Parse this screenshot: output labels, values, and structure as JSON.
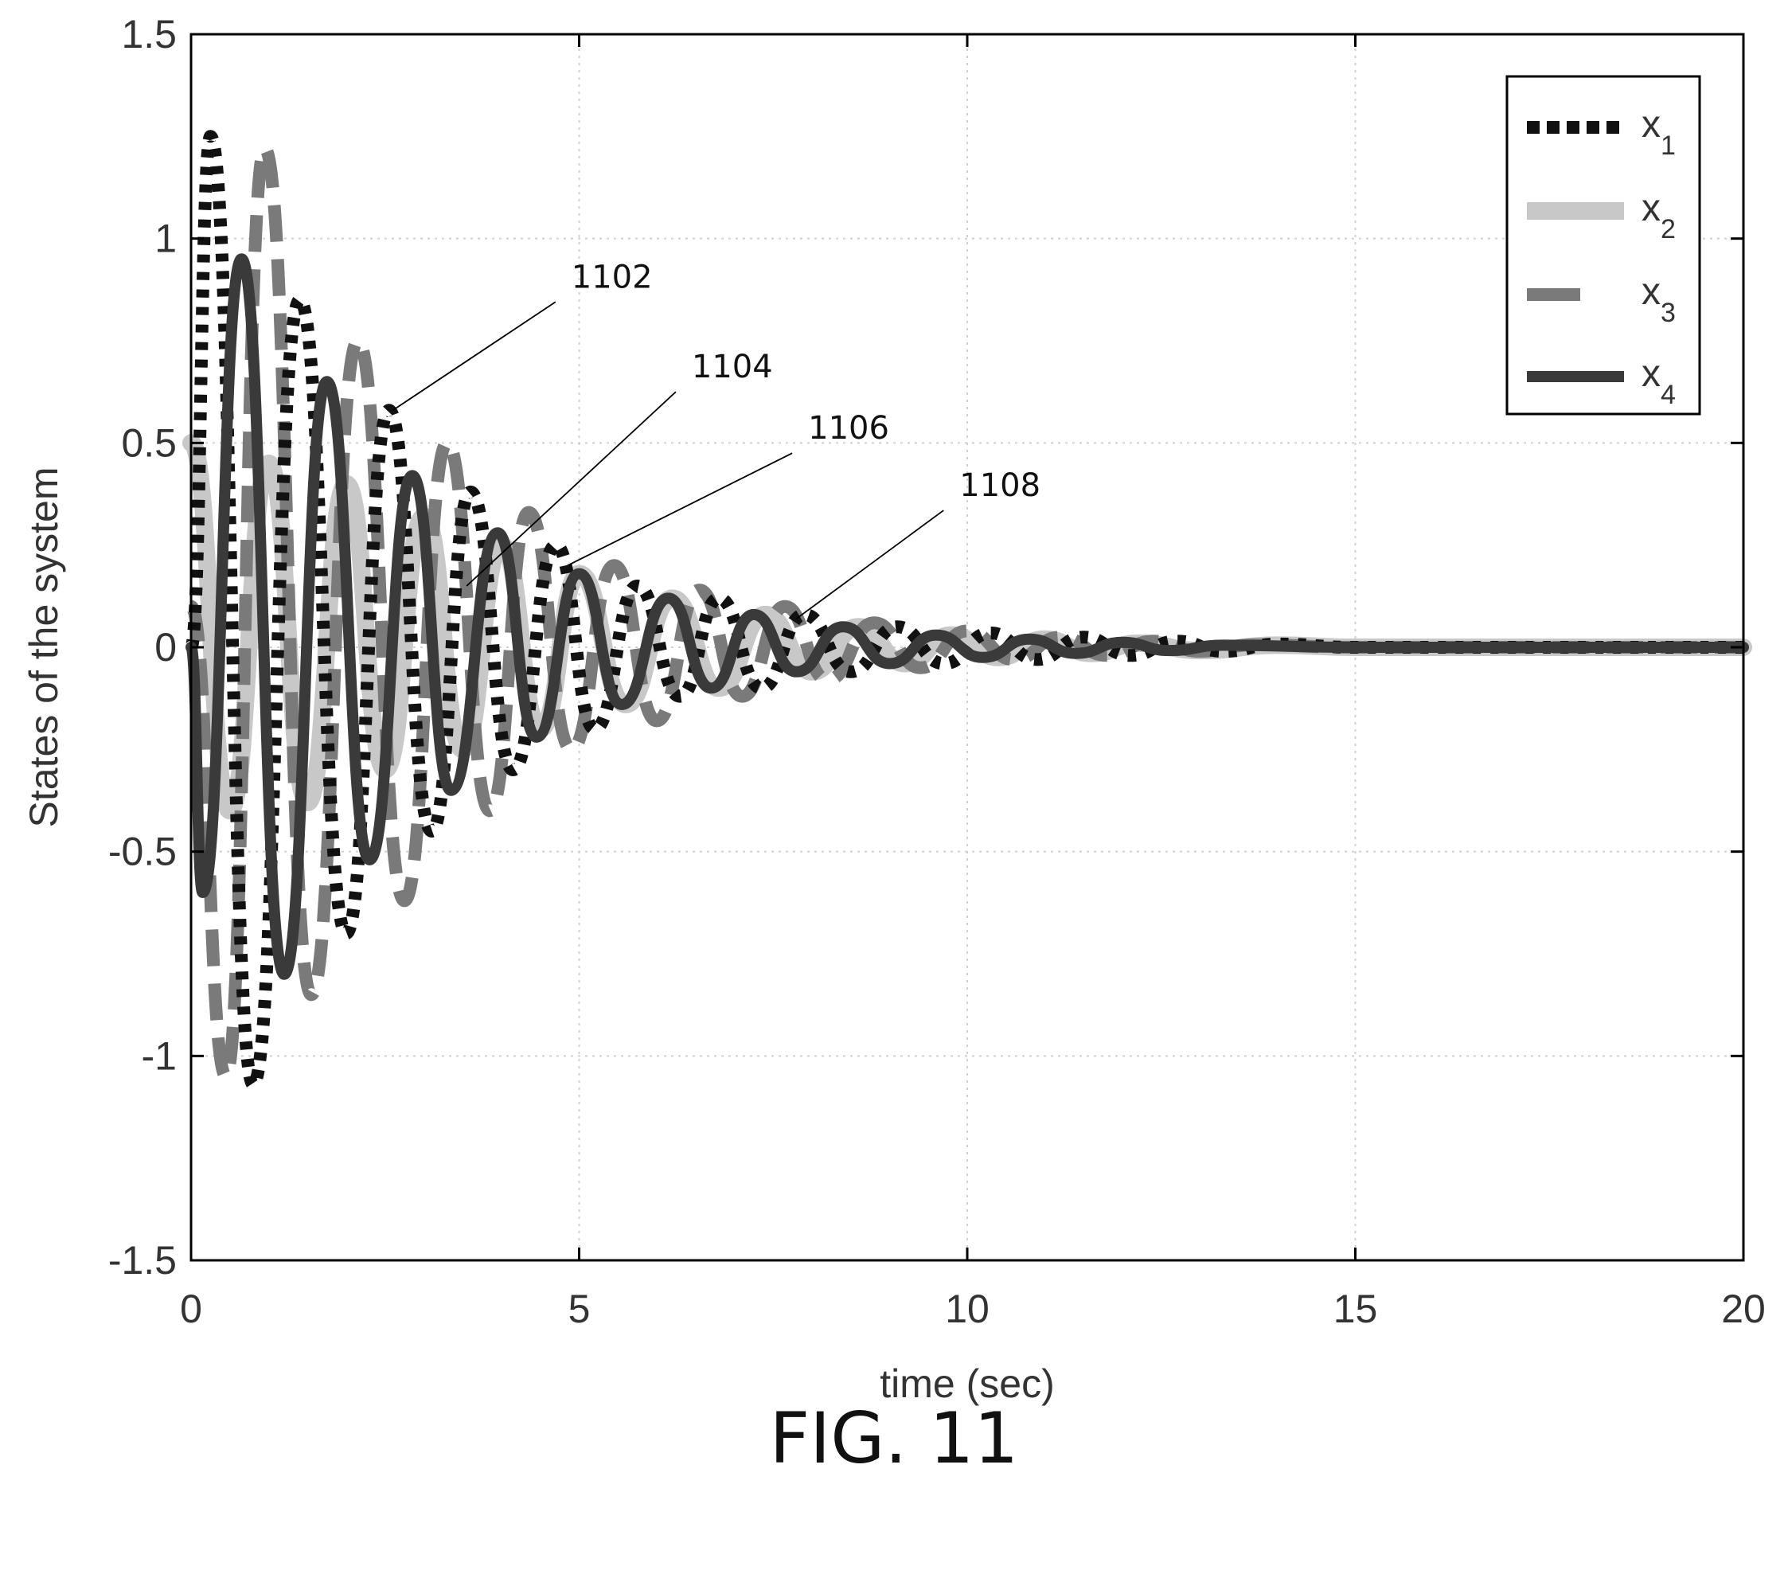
{
  "chart_data": {
    "type": "line",
    "xlabel": "time (sec)",
    "ylabel": "States of the system",
    "xlim": [
      0,
      20
    ],
    "ylim": [
      -1.5,
      1.5
    ],
    "xticks": [
      "0",
      "5",
      "10",
      "15",
      "20"
    ],
    "yticks": [
      "1.5",
      "1",
      "0.5",
      "0",
      "-0.5",
      "-1",
      "-1.5"
    ],
    "grid": true,
    "legend_position": "top-right",
    "series": [
      {
        "name": "x",
        "subscript": "1",
        "style": "dotted",
        "color": "#111111",
        "points": [
          [
            0,
            0.0
          ],
          [
            0.25,
            1.25
          ],
          [
            0.8,
            -1.07
          ],
          [
            1.4,
            0.85
          ],
          [
            2.0,
            -0.7
          ],
          [
            2.55,
            0.58
          ],
          [
            3.1,
            -0.45
          ],
          [
            3.6,
            0.38
          ],
          [
            4.15,
            -0.3
          ],
          [
            4.7,
            0.25
          ],
          [
            5.2,
            -0.2
          ],
          [
            5.75,
            0.15
          ],
          [
            6.3,
            -0.12
          ],
          [
            6.8,
            0.12
          ],
          [
            7.35,
            -0.1
          ],
          [
            7.9,
            0.08
          ],
          [
            8.5,
            -0.06
          ],
          [
            9.1,
            0.05
          ],
          [
            9.7,
            -0.04
          ],
          [
            10.3,
            0.035
          ],
          [
            10.9,
            -0.03
          ],
          [
            11.5,
            0.025
          ],
          [
            12.1,
            -0.02
          ],
          [
            12.7,
            0.015
          ],
          [
            13.3,
            -0.01
          ],
          [
            14.0,
            0.008
          ],
          [
            15.0,
            0.0
          ],
          [
            20,
            0.0
          ]
        ]
      },
      {
        "name": "x",
        "subscript": "2",
        "style": "solid",
        "color": "#c8c8c8",
        "points": [
          [
            0,
            0.5
          ],
          [
            0.5,
            -0.4
          ],
          [
            1.0,
            0.45
          ],
          [
            1.5,
            -0.38
          ],
          [
            2.0,
            0.4
          ],
          [
            2.5,
            -0.3
          ],
          [
            3.0,
            0.32
          ],
          [
            3.5,
            -0.25
          ],
          [
            4.0,
            0.25
          ],
          [
            4.5,
            -0.2
          ],
          [
            5.0,
            0.18
          ],
          [
            5.6,
            -0.14
          ],
          [
            6.2,
            0.12
          ],
          [
            6.8,
            -0.1
          ],
          [
            7.4,
            0.08
          ],
          [
            8.0,
            -0.06
          ],
          [
            8.6,
            0.05
          ],
          [
            9.2,
            -0.04
          ],
          [
            9.8,
            0.03
          ],
          [
            10.4,
            -0.025
          ],
          [
            11.0,
            0.02
          ],
          [
            11.6,
            -0.015
          ],
          [
            12.2,
            0.01
          ],
          [
            13.0,
            -0.008
          ],
          [
            14.0,
            0.005
          ],
          [
            15.0,
            0.0
          ],
          [
            20,
            0.0
          ]
        ]
      },
      {
        "name": "x",
        "subscript": "3",
        "style": "dashed",
        "color": "#7a7a7a",
        "points": [
          [
            0,
            0.1
          ],
          [
            0.45,
            -1.05
          ],
          [
            0.95,
            1.22
          ],
          [
            1.55,
            -0.85
          ],
          [
            2.15,
            0.75
          ],
          [
            2.75,
            -0.62
          ],
          [
            3.3,
            0.5
          ],
          [
            3.85,
            -0.4
          ],
          [
            4.35,
            0.33
          ],
          [
            4.9,
            -0.25
          ],
          [
            5.45,
            0.2
          ],
          [
            6.0,
            -0.18
          ],
          [
            6.55,
            0.14
          ],
          [
            7.1,
            -0.12
          ],
          [
            7.65,
            0.1
          ],
          [
            8.2,
            -0.08
          ],
          [
            8.8,
            0.06
          ],
          [
            9.4,
            -0.05
          ],
          [
            10.0,
            0.04
          ],
          [
            10.6,
            -0.03
          ],
          [
            11.2,
            0.025
          ],
          [
            11.8,
            -0.02
          ],
          [
            12.4,
            0.015
          ],
          [
            13.0,
            -0.01
          ],
          [
            13.7,
            0.006
          ],
          [
            15.0,
            0.0
          ],
          [
            20,
            0.0
          ]
        ]
      },
      {
        "name": "x",
        "subscript": "4",
        "style": "solid",
        "color": "#3a3a3a",
        "points": [
          [
            0,
            0.0
          ],
          [
            0.15,
            -0.6
          ],
          [
            0.65,
            0.95
          ],
          [
            1.2,
            -0.8
          ],
          [
            1.75,
            0.65
          ],
          [
            2.3,
            -0.52
          ],
          [
            2.85,
            0.42
          ],
          [
            3.35,
            -0.35
          ],
          [
            3.95,
            0.28
          ],
          [
            4.45,
            -0.22
          ],
          [
            5.0,
            0.18
          ],
          [
            5.55,
            -0.14
          ],
          [
            6.15,
            0.12
          ],
          [
            6.7,
            -0.1
          ],
          [
            7.25,
            0.08
          ],
          [
            7.8,
            -0.06
          ],
          [
            8.4,
            0.05
          ],
          [
            9.0,
            -0.04
          ],
          [
            9.6,
            0.03
          ],
          [
            10.2,
            -0.025
          ],
          [
            10.8,
            0.02
          ],
          [
            11.4,
            -0.015
          ],
          [
            12.0,
            0.012
          ],
          [
            12.6,
            -0.008
          ],
          [
            13.3,
            0.005
          ],
          [
            15.0,
            0.0
          ],
          [
            20,
            0.0
          ]
        ]
      }
    ],
    "annotations": [
      {
        "label": "1102",
        "label_at": [
          4.9,
          0.88
        ],
        "target": [
          2.6,
          0.58
        ]
      },
      {
        "label": "1104",
        "label_at": [
          6.45,
          0.66
        ],
        "target": [
          3.55,
          0.15
        ]
      },
      {
        "label": "1106",
        "label_at": [
          7.95,
          0.51
        ],
        "target": [
          4.85,
          0.2
        ]
      },
      {
        "label": "1108",
        "label_at": [
          9.9,
          0.37
        ],
        "target": [
          7.8,
          0.07
        ]
      }
    ]
  },
  "figure": {
    "caption": "FIG. 11"
  }
}
